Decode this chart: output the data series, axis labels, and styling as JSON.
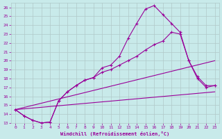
{
  "xlabel": "Windchill (Refroidissement éolien,°C)",
  "bg_color": "#c8eaea",
  "line_color": "#990099",
  "grid_color": "#b0c8c8",
  "xlim": [
    -0.5,
    23.5
  ],
  "ylim": [
    13,
    26.5
  ],
  "x_ticks": [
    0,
    1,
    2,
    3,
    4,
    5,
    6,
    7,
    8,
    9,
    10,
    11,
    12,
    13,
    14,
    15,
    16,
    17,
    18,
    19,
    20,
    21,
    22,
    23
  ],
  "y_ticks": [
    13,
    14,
    15,
    16,
    17,
    18,
    19,
    20,
    21,
    22,
    23,
    24,
    25,
    26
  ],
  "line_diag1": {
    "x": [
      0,
      23
    ],
    "y": [
      14.5,
      16.5
    ]
  },
  "line_diag2": {
    "x": [
      0,
      23
    ],
    "y": [
      14.5,
      20.0
    ]
  },
  "line_curve1": {
    "x": [
      0,
      1,
      2,
      3,
      4,
      5,
      6,
      7,
      8,
      9,
      10,
      11,
      12,
      13,
      14,
      15,
      16,
      17,
      18,
      19,
      20,
      21,
      22,
      23
    ],
    "y": [
      14.5,
      13.8,
      13.3,
      13.0,
      13.1,
      15.5,
      16.5,
      17.2,
      17.8,
      18.1,
      18.7,
      19.0,
      19.5,
      20.0,
      20.5,
      21.2,
      21.8,
      22.2,
      23.2,
      23.0,
      20.0,
      18.2,
      17.2,
      17.2
    ]
  },
  "line_curve2": {
    "x": [
      0,
      1,
      2,
      3,
      4,
      5,
      6,
      7,
      8,
      9,
      10,
      11,
      12,
      13,
      14,
      15,
      16,
      17,
      18,
      19,
      20,
      21,
      22,
      23
    ],
    "y": [
      14.5,
      13.8,
      13.3,
      13.0,
      13.1,
      15.5,
      16.5,
      17.2,
      17.8,
      18.1,
      19.2,
      19.5,
      20.5,
      22.5,
      24.2,
      25.8,
      26.2,
      25.2,
      24.2,
      23.2,
      20.0,
      18.0,
      17.0,
      17.2
    ]
  }
}
